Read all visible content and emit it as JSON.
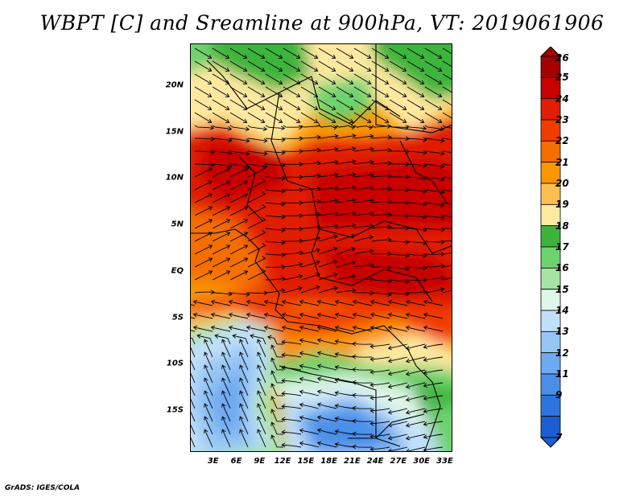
{
  "title": "WBPT [C] and Sreamline at 900hPa, VT: 2019061906",
  "credit": "GrADS: IGES/COLA",
  "map": {
    "lat_labels": [
      "20N",
      "15N",
      "10N",
      "5N",
      "EQ",
      "5S",
      "10S",
      "15S"
    ],
    "lat_values": [
      20,
      15,
      10,
      5,
      0,
      -5,
      -10,
      -15
    ],
    "lon_labels": [
      "3E",
      "6E",
      "9E",
      "12E",
      "15E",
      "18E",
      "21E",
      "24E",
      "27E",
      "30E",
      "33E"
    ],
    "lon_values": [
      3,
      6,
      9,
      12,
      15,
      18,
      21,
      24,
      27,
      30,
      33
    ],
    "lat_range": [
      -19.5,
      24.5
    ],
    "lon_range": [
      0,
      34
    ]
  },
  "colorbar": {
    "labels": [
      "26",
      "25",
      "24",
      "23",
      "22",
      "21",
      "20",
      "19",
      "18",
      "17",
      "16",
      "15",
      "14",
      "13",
      "12",
      "11",
      "9",
      "7"
    ],
    "colors": [
      "#a50000",
      "#c80000",
      "#e11e00",
      "#f03c00",
      "#f56e00",
      "#fa9600",
      "#fdc050",
      "#ffe9a0",
      "#3cb43c",
      "#6ed26e",
      "#a6e4a6",
      "#e0f6e8",
      "#c2e0fa",
      "#96c6f5",
      "#6eaaf0",
      "#4a8ee8",
      "#2e74de",
      "#1a5ed2"
    ]
  }
}
